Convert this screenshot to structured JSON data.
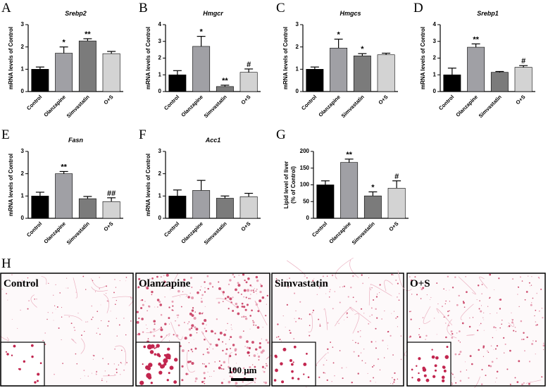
{
  "chart_data": [
    {
      "type": "bar",
      "panel": "A",
      "title": "Srebp2",
      "ylabel": "mRNA levels of Control",
      "categories": [
        "Control",
        "Olanzapine",
        "Simvastatin",
        "O+S"
      ],
      "values": [
        1.0,
        1.72,
        2.27,
        1.7
      ],
      "errors": [
        0.1,
        0.28,
        0.1,
        0.1
      ],
      "annotations": [
        null,
        "*",
        "**",
        null
      ],
      "colors": [
        "#000000",
        "#a0a0a5",
        "#7b7b7b",
        "#d3d3d3"
      ],
      "ylim": [
        0,
        3
      ],
      "yticks": [
        0,
        1,
        2,
        3
      ]
    },
    {
      "type": "bar",
      "panel": "B",
      "title": "Hmgcr",
      "ylabel": "mRNA levels of Control",
      "categories": [
        "Control",
        "Olanzapine",
        "Simvastatin",
        "O+S"
      ],
      "values": [
        1.0,
        2.7,
        0.3,
        1.15
      ],
      "errors": [
        0.25,
        0.6,
        0.08,
        0.2
      ],
      "annotations": [
        null,
        "*",
        "**",
        "#"
      ],
      "colors": [
        "#000000",
        "#a0a0a5",
        "#7b7b7b",
        "#d3d3d3"
      ],
      "ylim": [
        0,
        4
      ],
      "yticks": [
        0,
        1,
        2,
        3,
        4
      ]
    },
    {
      "type": "bar",
      "panel": "C",
      "title": "Hmgcs",
      "ylabel": "mRNA levels of Control",
      "categories": [
        "Control",
        "Olanzapine",
        "Simvastatin",
        "O+S"
      ],
      "values": [
        1.0,
        1.95,
        1.6,
        1.65
      ],
      "errors": [
        0.1,
        0.4,
        0.1,
        0.07
      ],
      "annotations": [
        null,
        "*",
        "*",
        null
      ],
      "colors": [
        "#000000",
        "#a0a0a5",
        "#7b7b7b",
        "#d3d3d3"
      ],
      "ylim": [
        0,
        3
      ],
      "yticks": [
        0,
        1,
        2,
        3
      ]
    },
    {
      "type": "bar",
      "panel": "D",
      "title": "Srebp1",
      "ylabel": "mRNA levels of Control",
      "categories": [
        "Control",
        "Olanzapine",
        "Simvastatin",
        "O+S"
      ],
      "values": [
        1.0,
        2.65,
        1.15,
        1.45
      ],
      "errors": [
        0.4,
        0.2,
        0.05,
        0.1
      ],
      "annotations": [
        null,
        "**",
        null,
        "#"
      ],
      "colors": [
        "#000000",
        "#a0a0a5",
        "#7b7b7b",
        "#d3d3d3"
      ],
      "ylim": [
        0,
        4
      ],
      "yticks": [
        0,
        1,
        2,
        3,
        4
      ]
    },
    {
      "type": "bar",
      "panel": "E",
      "title": "Fasn",
      "ylabel": "mRNA levels of Control",
      "categories": [
        "Control",
        "Olanzapine",
        "Simvastatin",
        "O+S"
      ],
      "values": [
        1.0,
        2.0,
        0.88,
        0.75
      ],
      "errors": [
        0.17,
        0.1,
        0.1,
        0.17
      ],
      "annotations": [
        null,
        "**",
        null,
        "##"
      ],
      "colors": [
        "#000000",
        "#a0a0a5",
        "#7b7b7b",
        "#d3d3d3"
      ],
      "ylim": [
        0,
        3
      ],
      "yticks": [
        0,
        1,
        2,
        3
      ]
    },
    {
      "type": "bar",
      "panel": "F",
      "title": "Acc1",
      "ylabel": "mRNA levels of Control",
      "categories": [
        "Control",
        "Olanzapine",
        "Simvastatin",
        "O+S"
      ],
      "values": [
        1.0,
        1.25,
        0.9,
        0.97
      ],
      "errors": [
        0.27,
        0.45,
        0.1,
        0.15
      ],
      "colors": [
        "#000000",
        "#a0a0a5",
        "#7b7b7b",
        "#d3d3d3"
      ],
      "ylim": [
        0,
        3
      ],
      "yticks": [
        0,
        1,
        2,
        3
      ]
    },
    {
      "type": "bar",
      "panel": "G",
      "ylabel": [
        "Lipid level of liver",
        "(% of Control)"
      ],
      "categories": [
        "Control",
        "Olanzapine",
        "Simvastatin",
        "O+S"
      ],
      "values": [
        100,
        167,
        67,
        90
      ],
      "errors": [
        12,
        10,
        12,
        22
      ],
      "annotations": [
        null,
        "**",
        "*",
        "#"
      ],
      "colors": [
        "#000000",
        "#a0a0a5",
        "#7b7b7b",
        "#d3d3d3"
      ],
      "ylim": [
        0,
        200
      ],
      "yticks": [
        0,
        50,
        100,
        150,
        200
      ]
    }
  ],
  "micrographs": {
    "panel": "H",
    "images": [
      "Control",
      "Olanzapine",
      "Simvastatin",
      "O+S"
    ],
    "scale_bar": "100 μm"
  }
}
